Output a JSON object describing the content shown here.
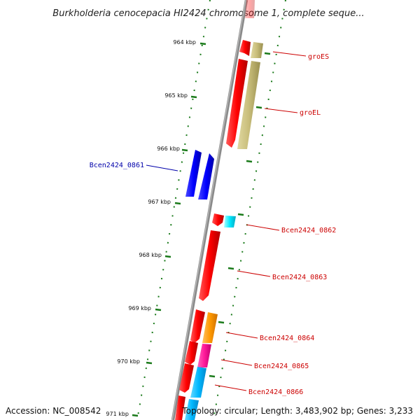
{
  "title": "Burkholderia cenocepacia HI2424 chromosome 1, complete seque...",
  "accession_text": "Accession: NC_008542",
  "topology_text": "Topology: circular; Length: 3,483,902 bp; Genes: 3,233",
  "scale_labels": [
    "964 kbp",
    "965 kbp",
    "966 kbp",
    "967 kbp",
    "968 kbp",
    "969 kbp",
    "970 kbp",
    "971 kbp"
  ],
  "colors": {
    "backbone": "#808080",
    "tick": "#1a7a1a",
    "label_red": "#cc0000",
    "label_blue": "#0000aa"
  },
  "gene_labels": [
    {
      "name": "groES",
      "color": "#cc0000"
    },
    {
      "name": "groEL",
      "color": "#cc0000"
    },
    {
      "name": "Bcen2424_0861",
      "color": "#0000aa"
    },
    {
      "name": "Bcen2424_0862",
      "color": "#cc0000"
    },
    {
      "name": "Bcen2424_0863",
      "color": "#cc0000"
    },
    {
      "name": "Bcen2424_0864",
      "color": "#cc0000"
    },
    {
      "name": "Bcen2424_0865",
      "color": "#cc0000"
    },
    {
      "name": "Bcen2424_0866",
      "color": "#cc0000"
    }
  ]
}
